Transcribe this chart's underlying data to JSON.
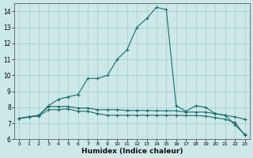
{
  "title": "",
  "xlabel": "Humidex (Indice chaleur)",
  "bg_color": "#cce8e8",
  "grid_color": "#aacccc",
  "line_color": "#1a6b6b",
  "xlim": [
    -0.5,
    23.5
  ],
  "ylim": [
    6,
    14.5
  ],
  "xtick_labels": [
    "0",
    "1",
    "2",
    "3",
    "4",
    "5",
    "6",
    "7",
    "8",
    "9",
    "10",
    "11",
    "12",
    "13",
    "14",
    "15",
    "16",
    "17",
    "18",
    "19",
    "20",
    "21",
    "2223"
  ],
  "xtick_pos": [
    0,
    1,
    2,
    3,
    4,
    5,
    6,
    7,
    8,
    9,
    10,
    11,
    12,
    13,
    14,
    15,
    16,
    17,
    18,
    19,
    20,
    21,
    22
  ],
  "yticks": [
    6,
    7,
    8,
    9,
    10,
    11,
    12,
    13,
    14
  ],
  "curve1_x": [
    0,
    1,
    2,
    3,
    4,
    5,
    6,
    7,
    8,
    9,
    10,
    11,
    12,
    13,
    14,
    15,
    16,
    17,
    18,
    19,
    20,
    21,
    22,
    23
  ],
  "curve1_y": [
    7.3,
    7.4,
    7.5,
    8.1,
    8.5,
    8.65,
    8.8,
    9.8,
    9.8,
    10.0,
    11.0,
    11.6,
    13.0,
    13.55,
    14.25,
    14.1,
    8.1,
    7.75,
    8.1,
    8.0,
    7.6,
    7.5,
    6.9,
    6.3
  ],
  "curve2_x": [
    0,
    1,
    2,
    3,
    4,
    5,
    6,
    7,
    8,
    9,
    10,
    11,
    12,
    13,
    14,
    15,
    16,
    17,
    18,
    19,
    20,
    21,
    22,
    23
  ],
  "curve2_y": [
    7.3,
    7.4,
    7.5,
    8.05,
    8.05,
    8.05,
    7.95,
    7.95,
    7.85,
    7.85,
    7.85,
    7.8,
    7.8,
    7.8,
    7.78,
    7.78,
    7.78,
    7.7,
    7.7,
    7.7,
    7.6,
    7.5,
    7.4,
    7.25
  ],
  "curve3_x": [
    0,
    1,
    2,
    3,
    4,
    5,
    6,
    7,
    8,
    9,
    10,
    11,
    12,
    13,
    14,
    15,
    16,
    17,
    18,
    19,
    20,
    21,
    22,
    23
  ],
  "curve3_y": [
    7.3,
    7.4,
    7.45,
    7.85,
    7.85,
    7.9,
    7.75,
    7.75,
    7.6,
    7.5,
    7.5,
    7.5,
    7.5,
    7.5,
    7.5,
    7.5,
    7.5,
    7.48,
    7.48,
    7.45,
    7.35,
    7.25,
    7.05,
    6.25
  ]
}
